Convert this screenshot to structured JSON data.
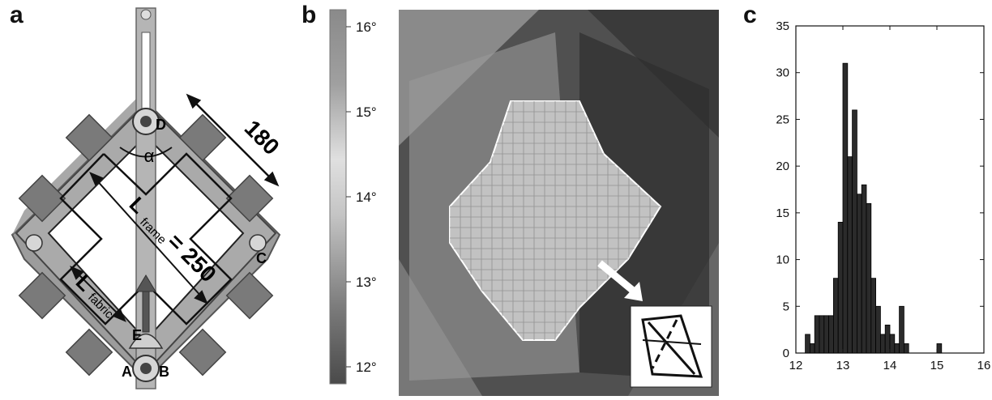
{
  "panels": {
    "a": "a",
    "b": "b",
    "c": "c"
  },
  "diagram_a": {
    "dimension_180": "180",
    "alpha": "α",
    "frame_L": "L",
    "frame_sub": "frame",
    "frame_value": "= 250",
    "fabric_L": "L",
    "fabric_sub": "fabric",
    "points": [
      "A",
      "B",
      "C",
      "D",
      "E"
    ]
  },
  "colorbar": {
    "ticks": [
      "16°",
      "15°",
      "14°",
      "13°",
      "12°"
    ],
    "tick_values": [
      16,
      15,
      14,
      13,
      12
    ],
    "range": [
      11.8,
      16.2
    ]
  },
  "chart_data": {
    "type": "bar",
    "title": "",
    "xlabel": "",
    "ylabel": "",
    "xlim": [
      12,
      16
    ],
    "ylim": [
      0,
      35
    ],
    "xticks": [
      "12",
      "13",
      "14",
      "15",
      "16"
    ],
    "yticks": [
      "0",
      "5",
      "10",
      "15",
      "20",
      "25",
      "30",
      "35"
    ],
    "bin_width": 0.1,
    "bin_starts": [
      12.2,
      12.3,
      12.4,
      12.5,
      12.6,
      12.7,
      12.8,
      12.9,
      13.0,
      13.1,
      13.2,
      13.3,
      13.4,
      13.5,
      13.6,
      13.7,
      13.8,
      13.9,
      14.0,
      14.1,
      14.2,
      14.3,
      14.4,
      14.5,
      14.6,
      14.7,
      14.8,
      14.9,
      15.0,
      15.1,
      15.2,
      15.3,
      15.4,
      15.5,
      15.6
    ],
    "values": [
      2,
      1,
      4,
      4,
      4,
      4,
      8,
      14,
      31,
      21,
      26,
      17,
      18,
      16,
      8,
      5,
      2,
      3,
      2,
      1,
      5,
      1,
      0,
      0,
      0,
      0,
      0,
      0,
      1,
      0,
      0,
      0,
      0,
      0,
      0
    ],
    "bar_color": "#2b2b2b",
    "grid": false
  }
}
